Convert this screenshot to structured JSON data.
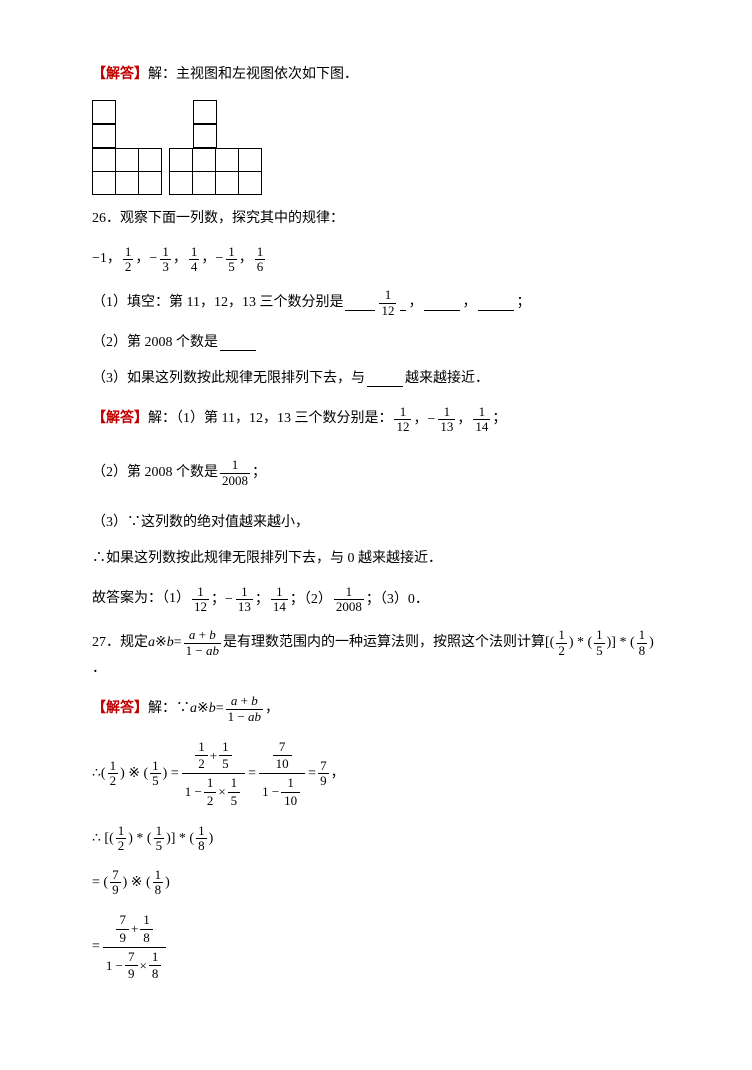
{
  "intro": {
    "label": "【解答】",
    "text": "解：主视图和左视图依次如下图．"
  },
  "diagram": {
    "cell_size": 24,
    "border_color": "#000000",
    "gap": 6,
    "shapes": [
      [
        [
          1,
          0,
          0
        ],
        [
          1,
          0,
          0
        ],
        [
          1,
          1,
          1
        ],
        [
          1,
          1,
          1
        ]
      ],
      [
        [
          0,
          1,
          0,
          0
        ],
        [
          0,
          1,
          0,
          0
        ],
        [
          1,
          1,
          1,
          1
        ],
        [
          1,
          1,
          1,
          1
        ]
      ]
    ]
  },
  "q26": {
    "title": "26．观察下面一列数，探究其中的规律：",
    "seq_prefix": "−1，",
    "seq_terms": [
      "1/2",
      "1/3",
      "1/4",
      "1/5",
      "1/6"
    ],
    "seq_signs": [
      "",
      "−",
      "",
      "−",
      ""
    ],
    "p1": "（1）填空：第 11，12，13 三个数分别是",
    "p1_first_ans": "1/12",
    "p1_tail": "，",
    "p1_end": "；",
    "p2": "（2）第 2008 个数是",
    "p3": "（3）如果这列数按此规律无限排列下去，与",
    "p3_tail": "越来越接近．",
    "ans_label": "【解答】",
    "a1_pre": "解：（1）第 11，12，13 三个数分别是：",
    "a1_vals": [
      "1/12",
      "1/13",
      "1/14"
    ],
    "a1_signs": [
      "",
      "−",
      ""
    ],
    "a2_pre": "（2）第 2008 个数是",
    "a2_val": "1/2008",
    "a3_1": "（3）∵这列数的绝对值越来越小，",
    "a3_2": "∴如果这列数按此规律无限排列下去，与 0 越来越接近．",
    "final_pre": "故答案为：（1）",
    "final_mid1": "；（2）",
    "final_mid2": "；（3）0．",
    "final_vals": [
      "1/12",
      "1/13",
      "1/14",
      "1/2008"
    ],
    "final_signs": [
      "",
      "−",
      "",
      ""
    ]
  },
  "q27": {
    "title_pre": "27．规定 ",
    "def_lhs_a": "a",
    "def_op": " ※ ",
    "def_lhs_b": "b",
    "def_eq": " = ",
    "def_num": "a + b",
    "def_den": "1 − ab",
    "title_post": " 是有理数范围内的一种运算法则，按照这个法则计算 ",
    "expr_tail": "．",
    "ans_label": "【解答】",
    "a_pre": "解：∵",
    "therefore": "∴",
    "step1_eq": " = ",
    "step1_result": "7/9",
    "colors": {
      "red": "#c00000",
      "text": "#000000"
    }
  }
}
